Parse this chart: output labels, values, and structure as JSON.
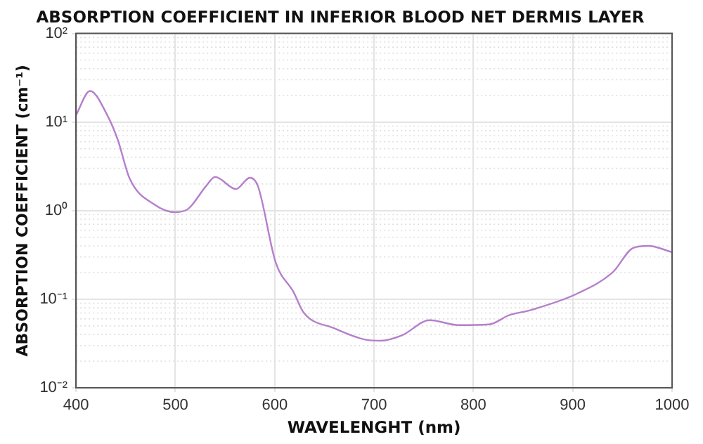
{
  "chart_data": {
    "type": "line",
    "title": "ABSORPTION COEFFICIENT IN INFERIOR BLOOD NET DERMIS LAYER",
    "xlabel": "WAVELENGHT (nm)",
    "ylabel": "ABSORPTION COEFFICIENT (cm⁻¹)",
    "series": [
      {
        "color": "#b57fcc",
        "x": [
          400,
          414,
          432,
          442,
          454,
          479,
          500,
          513,
          531,
          540,
          561,
          575,
          583,
          601,
          619,
          629,
          660,
          691,
          707,
          728,
          756,
          785,
          816,
          836,
          857,
          904,
          940,
          961,
          976,
          1000
        ],
        "values": [
          12,
          22.4,
          11.6,
          6.3,
          2.3,
          1.17,
          0.96,
          1.05,
          1.9,
          2.4,
          1.75,
          2.35,
          1.9,
          0.26,
          0.12,
          0.071,
          0.047,
          0.035,
          0.034,
          0.039,
          0.058,
          0.051,
          0.052,
          0.066,
          0.075,
          0.115,
          0.2,
          0.38,
          0.4,
          0.34
        ]
      }
    ],
    "xlim": [
      400,
      1000
    ],
    "xticks": [
      400,
      500,
      600,
      700,
      800,
      900,
      1000
    ],
    "ylim": [
      0.01,
      100
    ],
    "yticks": [
      {
        "value": 0.01,
        "label": "10⁻²"
      },
      {
        "value": 0.1,
        "label": "10⁻¹"
      },
      {
        "value": 1,
        "label": "10⁰"
      },
      {
        "value": 10,
        "label": "10¹"
      },
      {
        "value": 100,
        "label": "10²"
      }
    ],
    "log": "y",
    "grid": true,
    "legend": false,
    "marker": "none",
    "line_style": "solid"
  }
}
